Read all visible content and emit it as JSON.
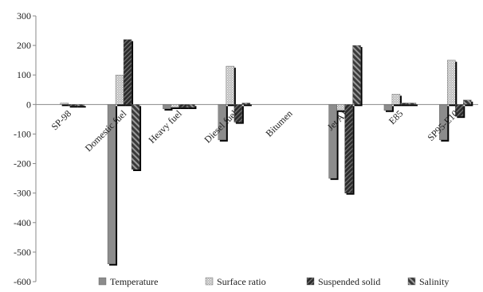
{
  "chart_data": {
    "type": "bar",
    "title": "",
    "xlabel": "",
    "ylabel": "",
    "ylim": [
      -600,
      300
    ],
    "yticks": [
      "300",
      "200",
      "100",
      "0",
      "-100",
      "-200",
      "-300",
      "-400",
      "-500",
      "-600"
    ],
    "grid": false,
    "legend_position": "bottom",
    "categories": [
      "SP-98",
      "Domestic fuel",
      "Heavy fuel",
      "Diesel fuel",
      "Bitumen",
      "Jet A1",
      "E85",
      "SP95-E10"
    ],
    "series": [
      {
        "name": "Temperature",
        "pattern": "solid-gray",
        "values": [
          0,
          -540,
          -15,
          -120,
          0,
          -250,
          -20,
          -120
        ]
      },
      {
        "name": "Surface ratio",
        "pattern": "dotted",
        "values": [
          5,
          100,
          -10,
          130,
          0,
          -20,
          35,
          150
        ]
      },
      {
        "name": "Suspended solid",
        "pattern": "dark-hatch",
        "values": [
          -5,
          220,
          -10,
          -60,
          0,
          -300,
          5,
          -40
        ]
      },
      {
        "name": "Salinity",
        "pattern": "light-hatch",
        "values": [
          -5,
          -220,
          -10,
          5,
          0,
          200,
          5,
          15
        ]
      }
    ],
    "colors": {
      "axis": "#888888",
      "bar_dark": "#222222",
      "bar_mid": "#888888",
      "shadow": "#000000"
    }
  }
}
